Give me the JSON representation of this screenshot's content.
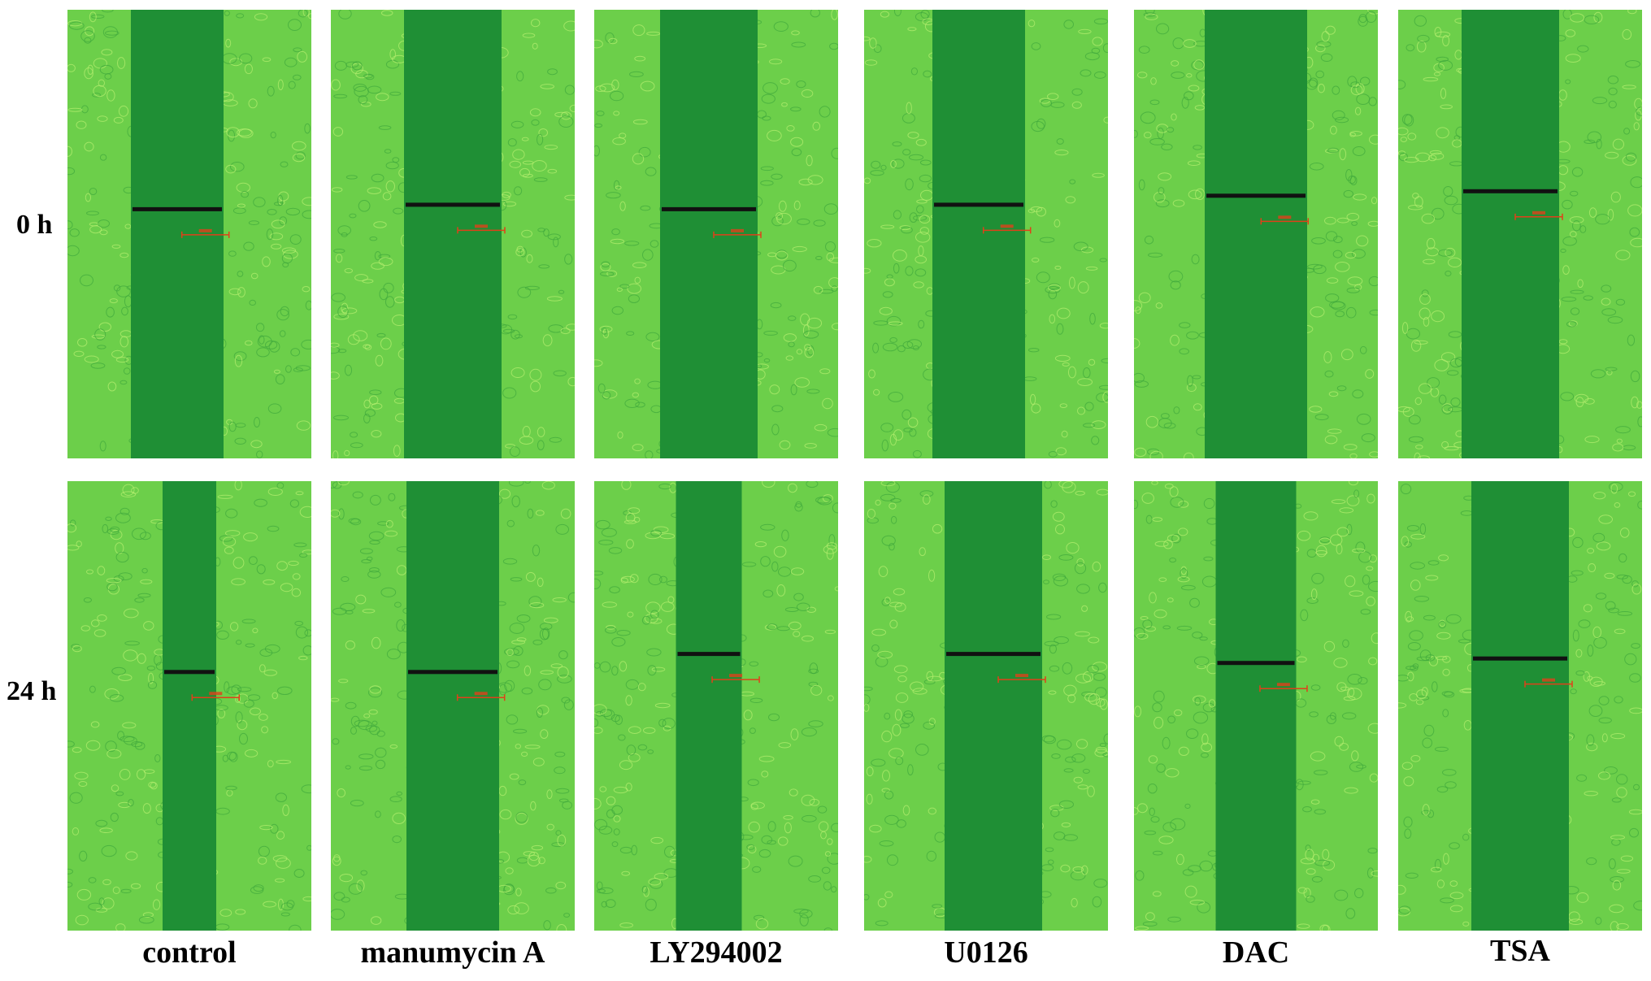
{
  "figure": {
    "row_labels": [
      "0 h",
      "24 h"
    ],
    "column_labels": [
      "control",
      "manumycin A",
      "LY294002",
      "U0126",
      "DAC",
      "TSA"
    ],
    "panels": [
      {
        "row": "0 h",
        "column": "control",
        "gap_fraction": 0.38
      },
      {
        "row": "0 h",
        "column": "manumycin A",
        "gap_fraction": 0.4
      },
      {
        "row": "0 h",
        "column": "LY294002",
        "gap_fraction": 0.4
      },
      {
        "row": "0 h",
        "column": "U0126",
        "gap_fraction": 0.38
      },
      {
        "row": "0 h",
        "column": "DAC",
        "gap_fraction": 0.42
      },
      {
        "row": "0 h",
        "column": "TSA",
        "gap_fraction": 0.4
      },
      {
        "row": "24 h",
        "column": "control",
        "gap_fraction": 0.22
      },
      {
        "row": "24 h",
        "column": "manumycin A",
        "gap_fraction": 0.38
      },
      {
        "row": "24 h",
        "column": "LY294002",
        "gap_fraction": 0.27
      },
      {
        "row": "24 h",
        "column": "U0126",
        "gap_fraction": 0.4
      },
      {
        "row": "24 h",
        "column": "DAC",
        "gap_fraction": 0.33
      },
      {
        "row": "24 h",
        "column": "TSA",
        "gap_fraction": 0.4
      }
    ],
    "colors": {
      "background_green": "#2e9a3a",
      "cell_layer_green": "#6ccf4a",
      "cell_outline": "#b8f070",
      "wound_gap_green": "#1f8f35",
      "measurement_bar": "#111111",
      "scale_bar": "#e0401a"
    }
  }
}
